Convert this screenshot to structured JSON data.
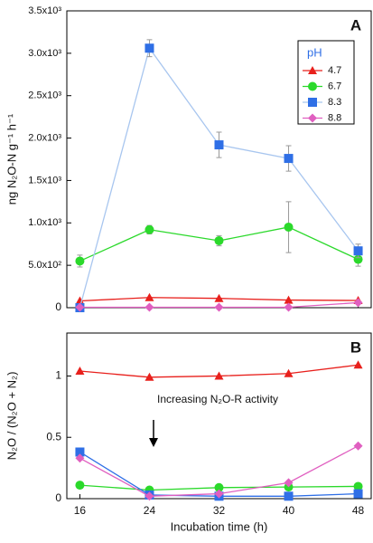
{
  "chart_data": [
    {
      "type": "line",
      "panel_label": "A",
      "y_label": "ng N₂O-N g⁻¹ h⁻¹",
      "x": [
        16,
        24,
        32,
        40,
        48
      ],
      "xlim": [
        14.5,
        49.5
      ],
      "ylim": [
        0,
        3500
      ],
      "yticks": [
        0,
        {
          "value": 500,
          "label": "5.0x10²"
        },
        {
          "value": 1000,
          "label": "1.0x10³"
        },
        {
          "value": 1500,
          "label": "1.5x10³"
        },
        {
          "value": 2000,
          "label": "2.0x10³"
        },
        {
          "value": 2500,
          "label": "2.5x10³"
        },
        {
          "value": 3000,
          "label": "3.0x10³"
        },
        {
          "value": 3500,
          "label": "3.5x10³"
        }
      ],
      "legend_title": "pH",
      "legend": "upper right",
      "series": [
        {
          "name": "4.7",
          "color": "#e8201c",
          "marker": "triangle",
          "values": [
            80,
            120,
            110,
            90,
            85
          ]
        },
        {
          "name": "6.7",
          "color": "#2bd92b",
          "marker": "circle",
          "values": [
            550,
            920,
            790,
            950,
            570
          ],
          "errors": [
            70,
            50,
            60,
            300,
            80
          ]
        },
        {
          "name": "8.3",
          "color": "#2f6fe6",
          "line_color": "#a8c6ef",
          "marker": "square",
          "values": [
            0,
            3060,
            1920,
            1760,
            670
          ],
          "errors": [
            null,
            100,
            150,
            150,
            80
          ]
        },
        {
          "name": "8.8",
          "color": "#e05fc0",
          "marker": "diamond",
          "values": [
            5,
            5,
            5,
            5,
            60
          ]
        }
      ]
    },
    {
      "type": "line",
      "panel_label": "B",
      "y_label": "N₂O / (N₂O + N₂)",
      "x_label": "Incubation time (h)",
      "annotation": "Increasing N₂O-R activity",
      "x": [
        16,
        24,
        32,
        40,
        48
      ],
      "xlim": [
        14.5,
        49.5
      ],
      "xticks": [
        16,
        24,
        32,
        40,
        48
      ],
      "ylim": [
        0,
        1.35
      ],
      "yticks": [
        0,
        0.5,
        1
      ],
      "series": [
        {
          "color": "#e8201c",
          "marker": "triangle",
          "values": [
            1.04,
            0.99,
            1.0,
            1.02,
            1.09
          ]
        },
        {
          "color": "#2bd92b",
          "marker": "circle",
          "values": [
            0.11,
            0.07,
            0.09,
            0.095,
            0.1
          ]
        },
        {
          "color": "#2f6fe6",
          "marker": "square",
          "values": [
            0.38,
            0.03,
            0.02,
            0.02,
            0.04
          ]
        },
        {
          "color": "#e05fc0",
          "marker": "diamond",
          "values": [
            0.33,
            0.02,
            0.04,
            0.13,
            0.43
          ]
        }
      ]
    }
  ]
}
